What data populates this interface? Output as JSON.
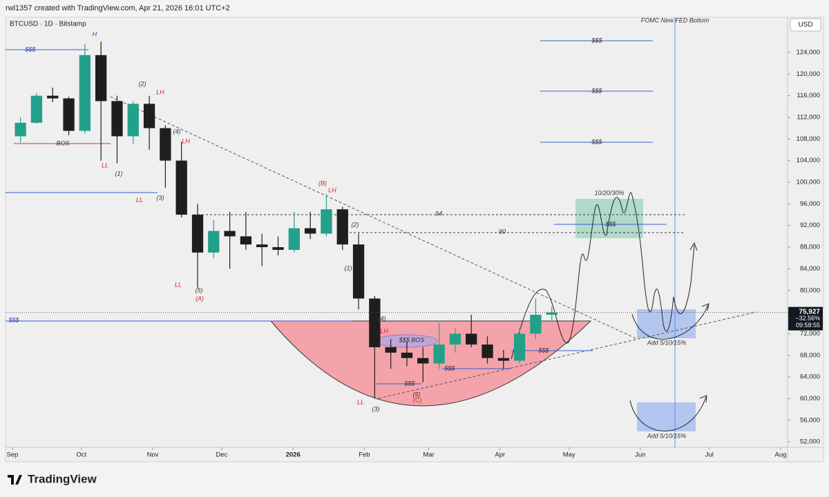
{
  "header": "rwl1357 created with TradingView.com, Apr 21, 2026 16:01 UTC+2",
  "brand": "TradingView",
  "chart_data": {
    "type": "candlestick",
    "symbol": "BTCUSD · 1D · Bitstamp",
    "currency": "USD",
    "up_color": "#22a08a",
    "down_color": "#1e1e1e",
    "x": [
      "2025-09-01",
      "2025-09-08",
      "2025-09-15",
      "2025-09-22",
      "2025-09-29",
      "2025-10-06",
      "2025-10-13",
      "2025-10-20",
      "2025-10-27",
      "2025-11-03",
      "2025-11-10",
      "2025-11-17",
      "2025-11-24",
      "2025-12-01",
      "2025-12-08",
      "2025-12-15",
      "2025-12-22",
      "2025-12-29",
      "2026-01-05",
      "2026-01-12",
      "2026-01-19",
      "2026-01-26",
      "2026-02-02",
      "2026-02-09",
      "2026-02-16",
      "2026-02-23",
      "2026-03-02",
      "2026-03-09",
      "2026-03-16",
      "2026-03-23",
      "2026-03-30",
      "2026-04-06",
      "2026-04-13",
      "2026-04-20"
    ],
    "open": [
      108500,
      111000,
      116000,
      115500,
      109500,
      123500,
      115000,
      108500,
      114500,
      110000,
      104000,
      94000,
      87000,
      91000,
      90000,
      88500,
      88000,
      87500,
      91500,
      90500,
      95000,
      88500,
      78500,
      69500,
      68500,
      67500,
      66500,
      70000,
      72000,
      70000,
      67500,
      67000,
      72000,
      75500
    ],
    "high": [
      112000,
      116500,
      117500,
      115800,
      125500,
      126000,
      116000,
      115000,
      116000,
      110500,
      107500,
      96000,
      93000,
      94500,
      94500,
      90500,
      90000,
      94500,
      94500,
      97800,
      95500,
      90500,
      79000,
      71000,
      70500,
      69500,
      74000,
      73000,
      75500,
      71500,
      69000,
      73000,
      78500,
      77000
    ],
    "low": [
      107300,
      110800,
      114800,
      108700,
      109000,
      104000,
      103500,
      107000,
      106000,
      99000,
      93500,
      80500,
      86000,
      84000,
      87500,
      84500,
      86500,
      87000,
      89500,
      90000,
      87500,
      76500,
      60000,
      65500,
      66000,
      63000,
      65500,
      68500,
      69500,
      66500,
      65500,
      66500,
      71000,
      74500
    ],
    "close": [
      111000,
      116000,
      115500,
      109500,
      123500,
      115000,
      108500,
      114500,
      110000,
      104000,
      94000,
      87000,
      91000,
      90000,
      88500,
      88000,
      87500,
      91500,
      90500,
      95000,
      88500,
      78500,
      69500,
      68500,
      67500,
      66500,
      70000,
      72000,
      70000,
      67500,
      67000,
      72000,
      75500,
      75927
    ],
    "xlim": [
      "2025-08-29",
      "2026-08-04"
    ],
    "xticks": [
      {
        "value": "2025-09-01",
        "label": "Sep"
      },
      {
        "value": "2025-10-01",
        "label": "Oct"
      },
      {
        "value": "2025-11-01",
        "label": "Nov"
      },
      {
        "value": "2025-12-01",
        "label": "Dec"
      },
      {
        "value": "2026-01-01",
        "label": "2026"
      },
      {
        "value": "2026-02-01",
        "label": "Feb"
      },
      {
        "value": "2026-03-01",
        "label": "Mar"
      },
      {
        "value": "2026-04-01",
        "label": "Apr"
      },
      {
        "value": "2026-05-01",
        "label": "May"
      },
      {
        "value": "2026-06-01",
        "label": "Jun"
      },
      {
        "value": "2026-07-01",
        "label": "Jul"
      },
      {
        "value": "2026-08-01",
        "label": "Aug"
      }
    ],
    "ylim": [
      51000,
      130500
    ],
    "yticks": [
      {
        "value": 52000,
        "label": "52,000"
      },
      {
        "value": 56000,
        "label": "56,000"
      },
      {
        "value": 60000,
        "label": "60,000"
      },
      {
        "value": 64000,
        "label": "64,000"
      },
      {
        "value": 68000,
        "label": "68,000"
      },
      {
        "value": 72000,
        "label": "72,000"
      },
      {
        "value": 76000,
        "label": "76,000"
      },
      {
        "value": 80000,
        "label": "80,000"
      },
      {
        "value": 84000,
        "label": "84,000"
      },
      {
        "value": 88000,
        "label": "88,000"
      },
      {
        "value": 92000,
        "label": "92,000"
      },
      {
        "value": 96000,
        "label": "96,000"
      },
      {
        "value": 100000,
        "label": "100,000"
      },
      {
        "value": 104000,
        "label": "104,000"
      },
      {
        "value": 108000,
        "label": "108,000"
      },
      {
        "value": 112000,
        "label": "112,000"
      },
      {
        "value": 116000,
        "label": "116,000"
      },
      {
        "value": 120000,
        "label": "120,000"
      },
      {
        "value": 124000,
        "label": "124,000"
      }
    ],
    "last_price": {
      "value": 75927,
      "label": "75,927"
    },
    "change": "−32.56%",
    "countdown": "09:58:55",
    "annotations": [
      "H",
      "$$$",
      "BOS",
      "LL",
      "(1)",
      "(2)",
      "LH",
      "(4)",
      "LH",
      "LL",
      "(3)",
      "LL",
      "(5)",
      "(A)",
      "(B)",
      "LH",
      "(2)",
      "(1)",
      "94",
      "90",
      "$$$",
      "(4)",
      "LH",
      "$$$ BOS",
      "$$$",
      "$$$",
      "$$$",
      "(5)",
      "(C)",
      "LL",
      "(3)",
      "$$$",
      "$$$",
      "$$$",
      "10/20/30%",
      "$$$",
      "FOMC New FED Bottom",
      "Add 5/10/15%",
      "Add 5/10/15%"
    ]
  }
}
